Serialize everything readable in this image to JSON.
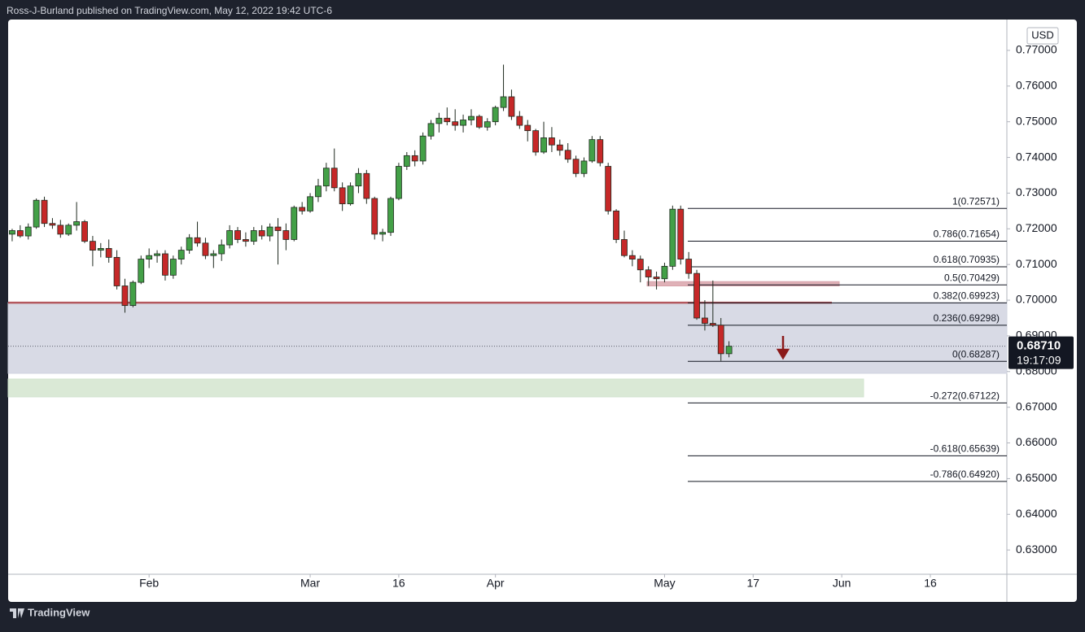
{
  "header": {
    "byline": "Ross-J-Burland published on TradingView.com, May 12, 2022 19:42 UTC-6"
  },
  "footer": {
    "brand": "TradingView"
  },
  "chart_data": {
    "type": "candlestick",
    "currency": "USD",
    "up_color": "#43a047",
    "down_color": "#c62828",
    "outline_color": "#1f2a1f",
    "open": [
      0.7185,
      0.7195,
      0.718,
      0.7205,
      0.728,
      0.7215,
      0.721,
      0.7185,
      0.721,
      0.722,
      0.7165,
      0.714,
      0.7145,
      0.712,
      0.704,
      0.6985,
      0.705,
      0.7115,
      0.7125,
      0.713,
      0.707,
      0.7115,
      0.714,
      0.7175,
      0.716,
      0.7125,
      0.713,
      0.7155,
      0.7195,
      0.717,
      0.7165,
      0.7195,
      0.718,
      0.7205,
      0.7195,
      0.717,
      0.726,
      0.725,
      0.729,
      0.732,
      0.737,
      0.7315,
      0.727,
      0.732,
      0.7355,
      0.7285,
      0.7185,
      0.719,
      0.7285,
      0.7375,
      0.7405,
      0.739,
      0.746,
      0.7495,
      0.751,
      0.75,
      0.749,
      0.7505,
      0.7515,
      0.7485,
      0.75,
      0.754,
      0.757,
      0.7515,
      0.749,
      0.7475,
      0.7415,
      0.7455,
      0.7435,
      0.742,
      0.7395,
      0.7355,
      0.739,
      0.745,
      0.7375,
      0.725,
      0.717,
      0.7125,
      0.7115,
      0.7085,
      0.7065,
      0.706,
      0.7095,
      0.7255,
      0.7115,
      0.7075,
      0.695,
      0.6935,
      0.693,
      0.685
    ],
    "high": [
      0.72,
      0.721,
      0.7215,
      0.7285,
      0.729,
      0.723,
      0.7225,
      0.7215,
      0.7275,
      0.7225,
      0.718,
      0.716,
      0.717,
      0.714,
      0.706,
      0.7055,
      0.7125,
      0.7145,
      0.714,
      0.714,
      0.7125,
      0.715,
      0.7185,
      0.722,
      0.7175,
      0.714,
      0.717,
      0.721,
      0.7205,
      0.719,
      0.7205,
      0.721,
      0.7215,
      0.723,
      0.7215,
      0.7265,
      0.7275,
      0.73,
      0.734,
      0.7385,
      0.7425,
      0.733,
      0.733,
      0.737,
      0.7365,
      0.729,
      0.72,
      0.729,
      0.7385,
      0.7415,
      0.742,
      0.747,
      0.7505,
      0.7525,
      0.754,
      0.7535,
      0.752,
      0.7535,
      0.752,
      0.751,
      0.7545,
      0.766,
      0.759,
      0.753,
      0.7505,
      0.748,
      0.75,
      0.7485,
      0.745,
      0.744,
      0.7405,
      0.74,
      0.746,
      0.746,
      0.7385,
      0.7255,
      0.7195,
      0.714,
      0.7125,
      0.7095,
      0.708,
      0.7105,
      0.7265,
      0.7265,
      0.7135,
      0.7085,
      0.7,
      0.7055,
      0.695,
      0.6885
    ],
    "low": [
      0.7165,
      0.7175,
      0.717,
      0.72,
      0.7205,
      0.72,
      0.7175,
      0.718,
      0.7195,
      0.716,
      0.7095,
      0.712,
      0.7105,
      0.703,
      0.6965,
      0.698,
      0.7045,
      0.709,
      0.7105,
      0.7055,
      0.706,
      0.71,
      0.713,
      0.715,
      0.7115,
      0.709,
      0.711,
      0.7145,
      0.716,
      0.715,
      0.7155,
      0.717,
      0.7165,
      0.71,
      0.714,
      0.7165,
      0.724,
      0.7245,
      0.7275,
      0.7305,
      0.7305,
      0.725,
      0.7265,
      0.73,
      0.727,
      0.717,
      0.7165,
      0.718,
      0.728,
      0.7365,
      0.7375,
      0.738,
      0.745,
      0.747,
      0.749,
      0.7475,
      0.747,
      0.749,
      0.748,
      0.7475,
      0.749,
      0.753,
      0.7505,
      0.748,
      0.7445,
      0.7405,
      0.741,
      0.7415,
      0.7405,
      0.7385,
      0.7345,
      0.7345,
      0.7385,
      0.7375,
      0.724,
      0.716,
      0.712,
      0.7095,
      0.705,
      0.704,
      0.703,
      0.705,
      0.7085,
      0.71,
      0.706,
      0.6945,
      0.6915,
      0.6925,
      0.683,
      0.684
    ],
    "close": [
      0.7195,
      0.718,
      0.7205,
      0.728,
      0.7215,
      0.721,
      0.7185,
      0.721,
      0.722,
      0.7165,
      0.714,
      0.7145,
      0.712,
      0.704,
      0.6985,
      0.705,
      0.7115,
      0.7125,
      0.713,
      0.707,
      0.7115,
      0.714,
      0.7175,
      0.716,
      0.7125,
      0.713,
      0.7155,
      0.7195,
      0.717,
      0.7165,
      0.7195,
      0.718,
      0.7205,
      0.7195,
      0.717,
      0.726,
      0.725,
      0.729,
      0.732,
      0.737,
      0.7315,
      0.727,
      0.732,
      0.7355,
      0.7285,
      0.7185,
      0.719,
      0.7285,
      0.7375,
      0.7405,
      0.739,
      0.746,
      0.7495,
      0.751,
      0.75,
      0.749,
      0.7505,
      0.7515,
      0.7485,
      0.75,
      0.754,
      0.757,
      0.7515,
      0.749,
      0.7475,
      0.7415,
      0.7455,
      0.7435,
      0.742,
      0.7395,
      0.7355,
      0.739,
      0.745,
      0.7385,
      0.725,
      0.717,
      0.7125,
      0.7115,
      0.7085,
      0.7065,
      0.706,
      0.7095,
      0.7255,
      0.7115,
      0.7075,
      0.695,
      0.6935,
      0.693,
      0.685,
      0.6871
    ],
    "xlim": [
      -0.5,
      123.5
    ],
    "xticks": [
      {
        "value": 17,
        "label": "Feb"
      },
      {
        "value": 37,
        "label": "Mar"
      },
      {
        "value": 48,
        "label": "16"
      },
      {
        "value": 60,
        "label": "Apr"
      },
      {
        "value": 81,
        "label": "May"
      },
      {
        "value": 92,
        "label": "17"
      },
      {
        "value": 103,
        "label": "Jun"
      },
      {
        "value": 114,
        "label": "16"
      }
    ],
    "ylim": [
      0.6232,
      0.7791
    ],
    "yticks": [
      {
        "value": 0.63,
        "label": "0.63000"
      },
      {
        "value": 0.64,
        "label": "0.64000"
      },
      {
        "value": 0.65,
        "label": "0.65000"
      },
      {
        "value": 0.66,
        "label": "0.66000"
      },
      {
        "value": 0.67,
        "label": "0.67000"
      },
      {
        "value": 0.68,
        "label": "0.68000"
      },
      {
        "value": 0.69,
        "label": "0.69000"
      },
      {
        "value": 0.7,
        "label": "0.70000"
      },
      {
        "value": 0.71,
        "label": "0.71000"
      },
      {
        "value": 0.72,
        "label": "0.72000"
      },
      {
        "value": 0.73,
        "label": "0.73000"
      },
      {
        "value": 0.74,
        "label": "0.74000"
      },
      {
        "value": 0.75,
        "label": "0.75000"
      },
      {
        "value": 0.76,
        "label": "0.76000"
      },
      {
        "value": 0.77,
        "label": "0.77000"
      }
    ],
    "fib_levels": [
      {
        "value": 0.72571,
        "label": "1(0.72571)"
      },
      {
        "value": 0.71654,
        "label": "0.786(0.71654)"
      },
      {
        "value": 0.70935,
        "label": "0.618(0.70935)"
      },
      {
        "value": 0.70429,
        "label": "0.5(0.70429)"
      },
      {
        "value": 0.69923,
        "label": "0.382(0.69923)"
      },
      {
        "value": 0.69298,
        "label": "0.236(0.69298)"
      },
      {
        "value": 0.68287,
        "label": "0(0.68287)"
      },
      {
        "value": 0.67122,
        "label": "-0.272(0.67122)"
      },
      {
        "value": 0.65639,
        "label": "-0.618(0.65639)"
      },
      {
        "value": 0.6492,
        "label": "-0.786(0.64920)"
      }
    ],
    "zones": [
      {
        "low": 0.6795,
        "high": 0.6993,
        "color": "#d1d4e0"
      },
      {
        "low": 0.6729,
        "high": 0.6779,
        "color": "#d3e5cf"
      },
      {
        "low": 0.704,
        "high": 0.7052,
        "color": "#d9a3aa"
      }
    ],
    "support_line": {
      "value": 0.6993,
      "color": "#b4585e"
    },
    "last_price": {
      "value": 0.6871,
      "label": "0.68710"
    },
    "countdown": "19:17:09"
  }
}
